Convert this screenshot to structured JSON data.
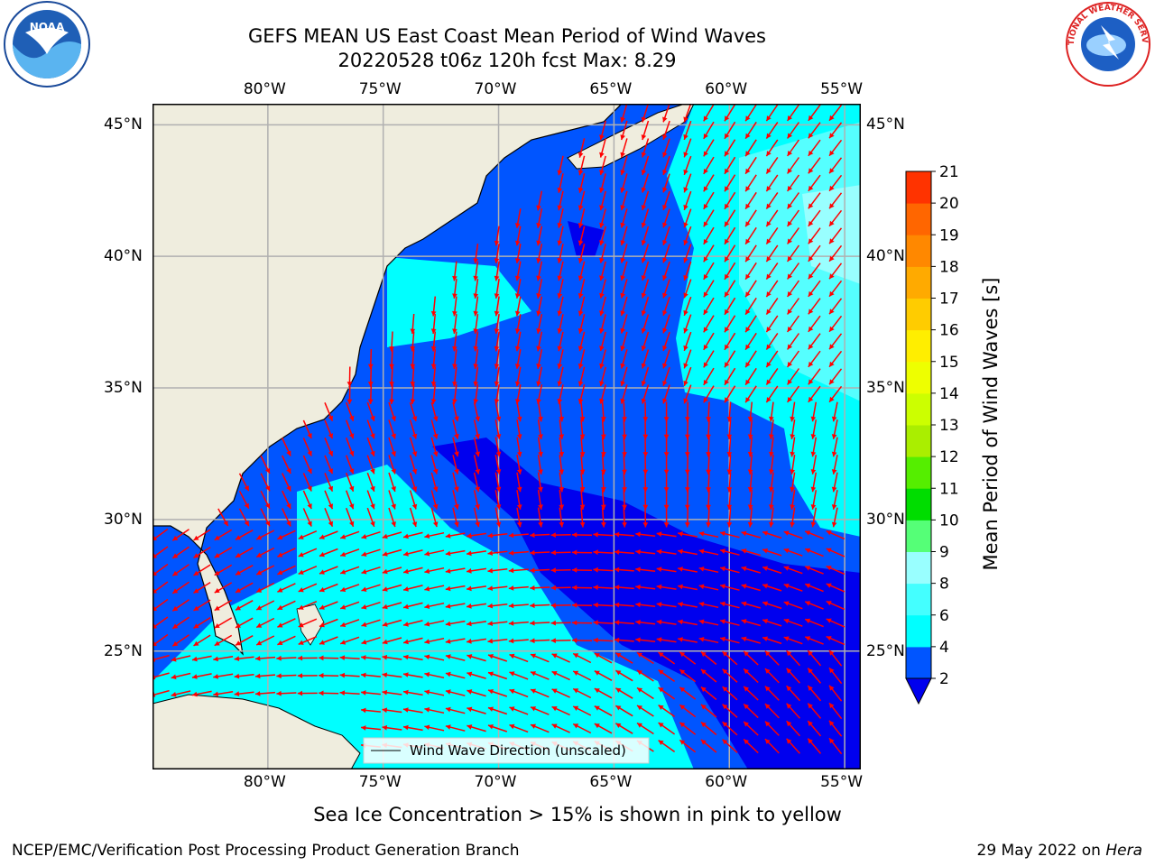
{
  "title": {
    "line1": "GEFS MEAN US East Coast Mean Period of Wind Waves",
    "line2": "20220528 t06z 120h fcst   Max: 8.29"
  },
  "map": {
    "projection": "lat-lon",
    "lon_range": [
      -85,
      -54.3
    ],
    "lat_range": [
      20.5,
      45.8
    ],
    "lon_ticks": [
      -80,
      -75,
      -70,
      -65,
      -60,
      -55
    ],
    "lat_ticks": [
      25,
      30,
      35,
      40,
      45
    ],
    "lon_tick_labels": [
      "80°W",
      "75°W",
      "70°W",
      "65°W",
      "60°W",
      "55°W"
    ],
    "lat_tick_labels": [
      "25°N",
      "30°N",
      "35°N",
      "40°N",
      "45°N"
    ],
    "grid": true,
    "land_color": "#efedde",
    "arrow_color": "#ff0000"
  },
  "legend": {
    "label": "Wind Wave Direction (unscaled)",
    "placement": "bottom-center"
  },
  "colorbar": {
    "label": "Mean Period of Wind Waves [s]",
    "ticks": [
      2,
      4,
      6,
      8,
      9,
      10,
      11,
      12,
      13,
      14,
      15,
      16,
      17,
      18,
      19,
      20,
      21
    ],
    "colors": [
      "#0055ff",
      "#00ffff",
      "#44ffff",
      "#99ffff",
      "#55ff77",
      "#00dd00",
      "#55ee00",
      "#aaee00",
      "#ccff00",
      "#eeff00",
      "#ffee00",
      "#ffcc00",
      "#ffaa00",
      "#ff8800",
      "#ff6600",
      "#ff3300",
      "#ff0000"
    ],
    "under_color": "#0000ee"
  },
  "sea_ice_note": "Sea Ice Concentration > 15% is shown in pink to yellow",
  "footer": {
    "left": "NCEP/EMC/Verification Post Processing Product Generation Branch",
    "right_prefix": "29 May 2022 on ",
    "right_machine": "Hera"
  },
  "logos": {
    "left": "noaa-logo",
    "left_text": "NOAA",
    "right": "nws-logo",
    "right_text": "NATIONAL WEATHER SERVICE"
  }
}
